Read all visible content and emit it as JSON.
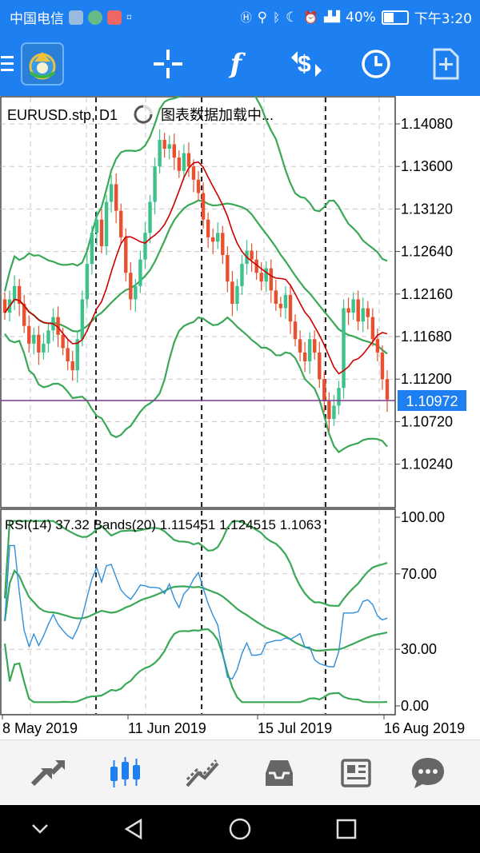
{
  "status_bar": {
    "carrier": "中国电信",
    "battery_percent": "40%",
    "time": "下午3:20"
  },
  "toolbar": {
    "icons": [
      "menu-icon",
      "app-logo",
      "crosshair-icon",
      "indicator-f-icon",
      "trade-dollar-icon",
      "clock-icon",
      "new-order-icon"
    ]
  },
  "chart": {
    "symbol_label": "EURUSD.stp, D1",
    "loading_text": "图表数据加载中...",
    "current_price": "1.10972",
    "price_ticks": [
      "1.14080",
      "1.13600",
      "1.13120",
      "1.12640",
      "1.12160",
      "1.11680",
      "1.11200",
      "1.10720",
      "1.10240"
    ],
    "rsi_label": "RSI(14) 37.32 Bands(20) 1.115451 1.124515 1.1063",
    "rsi_ticks": [
      "100.00",
      "70.00",
      "30.00",
      "0.00"
    ],
    "date_labels": [
      "8 May 2019",
      "11 Jun 2019",
      "15 Jul 2019",
      "16 Aug 2019"
    ],
    "colors": {
      "bull": "#3cc28a",
      "bear": "#e8502f",
      "bands": "#3aa857",
      "ma": "#cc0000",
      "rsi": "#2f8fdc",
      "price_line": "#7a3b8f",
      "accent": "#1e7ff0"
    }
  },
  "bottom_nav": {
    "items": [
      "quotes-icon",
      "chart-icon",
      "trade-icon",
      "history-icon",
      "news-icon",
      "chat-icon"
    ],
    "active": "chart-icon"
  },
  "system_nav": {
    "items": [
      "down-icon",
      "back-icon",
      "home-icon",
      "recents-icon"
    ]
  }
}
